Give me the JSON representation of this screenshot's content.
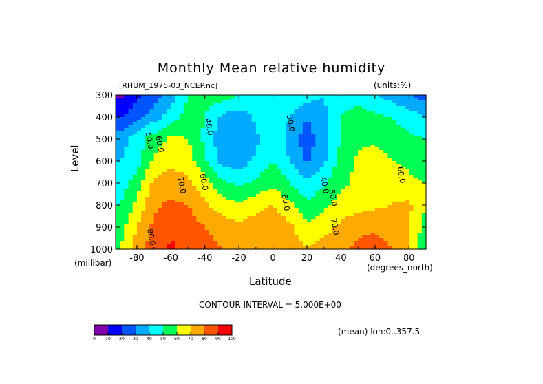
{
  "chart_data": {
    "type": "heatmap",
    "title": "Monthly Mean relative humidity",
    "subtitle_left": "[RHUM_1975-03_NCEP.nc]",
    "subtitle_right": "(units:%)",
    "xlabel": "Latitude",
    "xunits": "(degrees_north)",
    "ylabel": "Level",
    "yunits": "(millibar)",
    "xlim": [
      -92.5,
      90
    ],
    "ylim": [
      300,
      1000
    ],
    "x_ticks": [
      "-80",
      "-60",
      "-40",
      "-20",
      "0",
      "20",
      "40",
      "60",
      "80"
    ],
    "y_ticks": [
      "300",
      "400",
      "500",
      "600",
      "700",
      "800",
      "900",
      "1000"
    ],
    "annotation": "CONTOUR INTERVAL = 5.000E+00",
    "footer": "(mean) lon:0..357.5",
    "lats": [
      -90,
      -80,
      -70,
      -60,
      -50,
      -40,
      -30,
      -20,
      -10,
      0,
      10,
      20,
      30,
      40,
      50,
      60,
      70,
      80,
      90
    ],
    "levels": [
      300,
      400,
      500,
      600,
      700,
      800,
      900,
      1000
    ],
    "values": [
      [
        8,
        18,
        25,
        35,
        50,
        55,
        55,
        50,
        45,
        50,
        50,
        45,
        40,
        45,
        45,
        40,
        35,
        30,
        25
      ],
      [
        20,
        25,
        35,
        45,
        55,
        50,
        38,
        35,
        42,
        50,
        40,
        30,
        38,
        50,
        55,
        52,
        50,
        45,
        40
      ],
      [
        35,
        45,
        55,
        62,
        60,
        48,
        33,
        32,
        38,
        48,
        35,
        25,
        35,
        50,
        58,
        58,
        55,
        52,
        50
      ],
      [
        40,
        45,
        62,
        68,
        65,
        52,
        36,
        35,
        42,
        50,
        40,
        28,
        38,
        55,
        62,
        65,
        60,
        58,
        55
      ],
      [
        45,
        55,
        72,
        75,
        72,
        65,
        52,
        48,
        52,
        58,
        50,
        42,
        48,
        58,
        62,
        65,
        68,
        62,
        60
      ],
      [
        50,
        62,
        78,
        82,
        80,
        72,
        65,
        62,
        66,
        70,
        62,
        52,
        58,
        64,
        66,
        68,
        70,
        72,
        60
      ],
      [
        55,
        70,
        82,
        88,
        85,
        80,
        75,
        72,
        76,
        78,
        72,
        62,
        66,
        72,
        78,
        78,
        75,
        70,
        55
      ],
      [
        60,
        75,
        85,
        92,
        87,
        85,
        80,
        78,
        78,
        78,
        76,
        70,
        74,
        78,
        82,
        85,
        80,
        72,
        50
      ]
    ],
    "colorbar": {
      "ticks": [
        "0",
        "10",
        "20",
        "30",
        "40",
        "50",
        "60",
        "70",
        "80",
        "90",
        "100"
      ],
      "colors": [
        "#7f00a8",
        "#0000ff",
        "#0055ff",
        "#00aaff",
        "#00ffff",
        "#00ff55",
        "#ffff00",
        "#ffaa00",
        "#ff5500",
        "#ff0000"
      ]
    },
    "contour_labels": [
      {
        "text": "40.0",
        "lat": -39,
        "level": 447
      },
      {
        "text": "30.0",
        "lat": 9,
        "level": 431
      },
      {
        "text": "50.0",
        "lat": -74,
        "level": 509
      },
      {
        "text": "60.0",
        "lat": -68,
        "level": 525
      },
      {
        "text": "60.0",
        "lat": -42,
        "level": 697
      },
      {
        "text": "70.0",
        "lat": -55,
        "level": 712
      },
      {
        "text": "80.0",
        "lat": -73,
        "level": 947
      },
      {
        "text": "60.0",
        "lat": 6,
        "level": 790
      },
      {
        "text": "40.0",
        "lat": 29,
        "level": 712
      },
      {
        "text": "50.0",
        "lat": 34,
        "level": 769
      },
      {
        "text": "70.0",
        "lat": 35,
        "level": 900
      },
      {
        "text": "60.0",
        "lat": 74,
        "level": 665
      }
    ]
  }
}
